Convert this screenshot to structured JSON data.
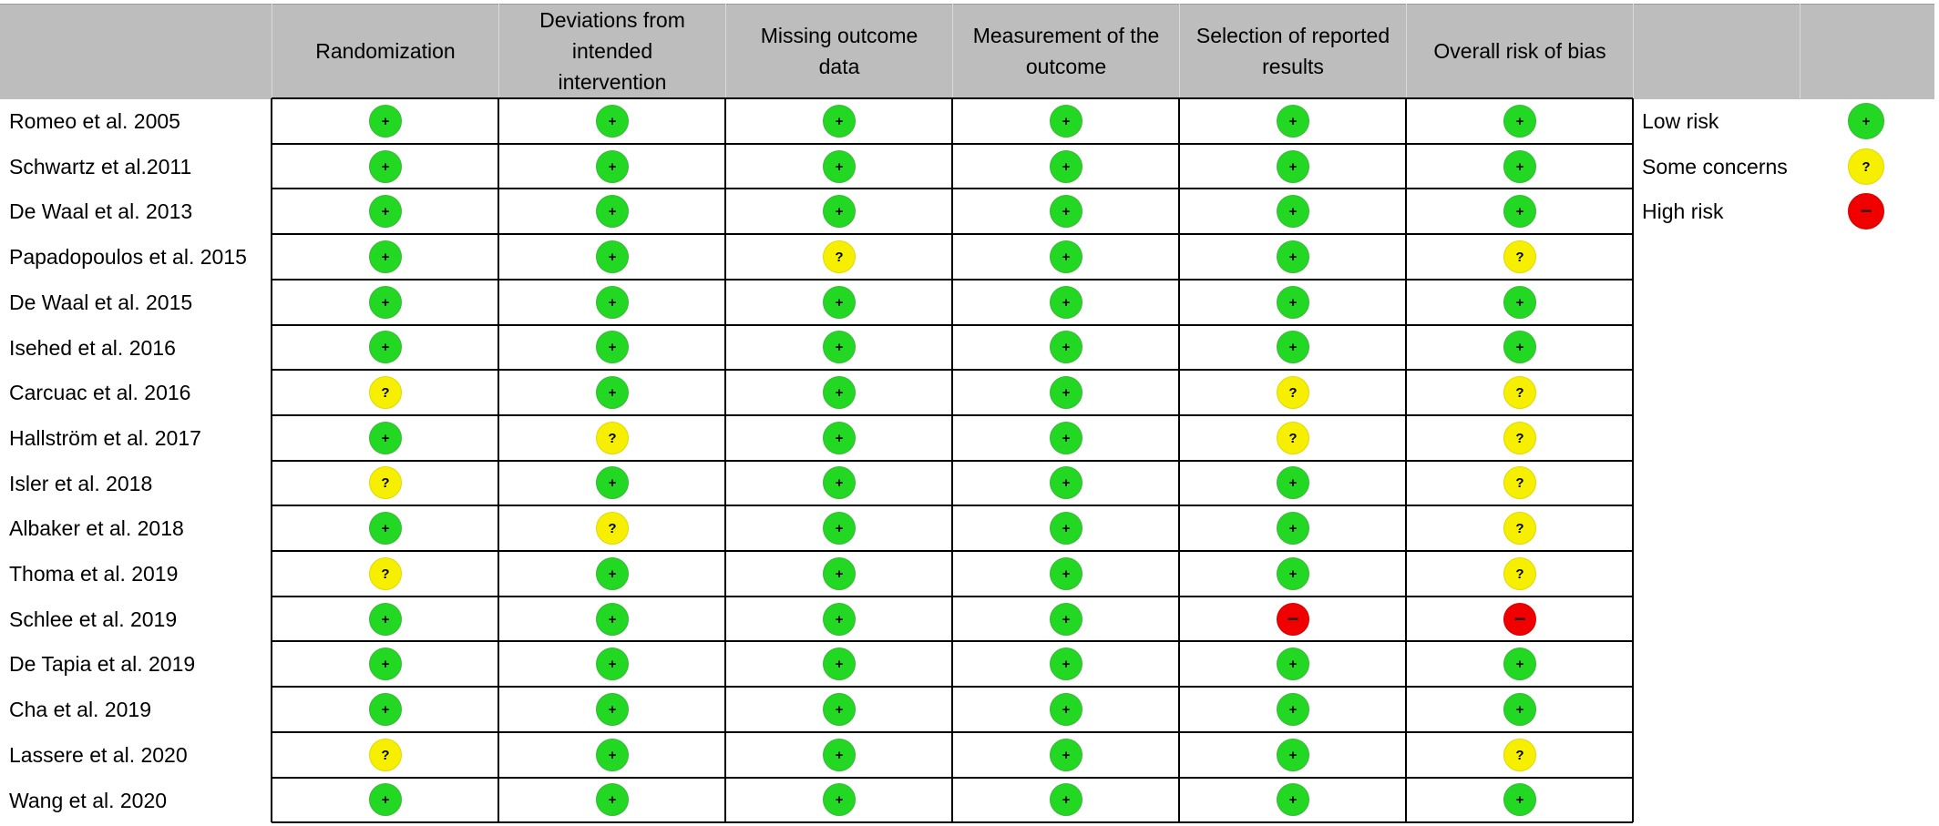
{
  "chart_data": {
    "type": "table",
    "columns": [
      "Randomization",
      "Deviations from\nintended\nintervention",
      "Missing outcome\ndata",
      "Measurement of the\noutcome",
      "Selection of reported\nresults",
      "Overall risk of bias"
    ],
    "rows": [
      {
        "study": "Romeo et al. 2005",
        "ratings": [
          "low",
          "low",
          "low",
          "low",
          "low",
          "low"
        ]
      },
      {
        "study": "Schwartz et al.2011",
        "ratings": [
          "low",
          "low",
          "low",
          "low",
          "low",
          "low"
        ]
      },
      {
        "study": "De Waal et al. 2013",
        "ratings": [
          "low",
          "low",
          "low",
          "low",
          "low",
          "low"
        ]
      },
      {
        "study": "Papadopoulos et al. 2015",
        "ratings": [
          "low",
          "low",
          "some",
          "low",
          "low",
          "some"
        ]
      },
      {
        "study": "De Waal et al. 2015",
        "ratings": [
          "low",
          "low",
          "low",
          "low",
          "low",
          "low"
        ]
      },
      {
        "study": "Isehed et al. 2016",
        "ratings": [
          "low",
          "low",
          "low",
          "low",
          "low",
          "low"
        ]
      },
      {
        "study": "Carcuac et al. 2016",
        "ratings": [
          "some",
          "low",
          "low",
          "low",
          "some",
          "some"
        ]
      },
      {
        "study": "Hallström et al. 2017",
        "ratings": [
          "low",
          "some",
          "low",
          "low",
          "some",
          "some"
        ]
      },
      {
        "study": "Isler et al. 2018",
        "ratings": [
          "some",
          "low",
          "low",
          "low",
          "low",
          "some"
        ]
      },
      {
        "study": "Albaker et al. 2018",
        "ratings": [
          "low",
          "some",
          "low",
          "low",
          "low",
          "some"
        ]
      },
      {
        "study": "Thoma et al. 2019",
        "ratings": [
          "some",
          "low",
          "low",
          "low",
          "low",
          "some"
        ]
      },
      {
        "study": "Schlee et al. 2019",
        "ratings": [
          "low",
          "low",
          "low",
          "low",
          "high",
          "high"
        ]
      },
      {
        "study": "De Tapia et al. 2019",
        "ratings": [
          "low",
          "low",
          "low",
          "low",
          "low",
          "low"
        ]
      },
      {
        "study": "Cha et al. 2019",
        "ratings": [
          "low",
          "low",
          "low",
          "low",
          "low",
          "low"
        ]
      },
      {
        "study": "Lassere et al. 2020",
        "ratings": [
          "some",
          "low",
          "low",
          "low",
          "low",
          "some"
        ]
      },
      {
        "study": "Wang et al. 2020",
        "ratings": [
          "low",
          "low",
          "low",
          "low",
          "low",
          "low"
        ]
      }
    ],
    "legend": [
      {
        "key": "low",
        "label": "Low risk",
        "symbol": "+",
        "color": "#22d822"
      },
      {
        "key": "some",
        "label": "Some concerns",
        "symbol": "?",
        "color": "#f6f000"
      },
      {
        "key": "high",
        "label": "High risk",
        "symbol": "−",
        "color": "#f10000"
      }
    ]
  }
}
